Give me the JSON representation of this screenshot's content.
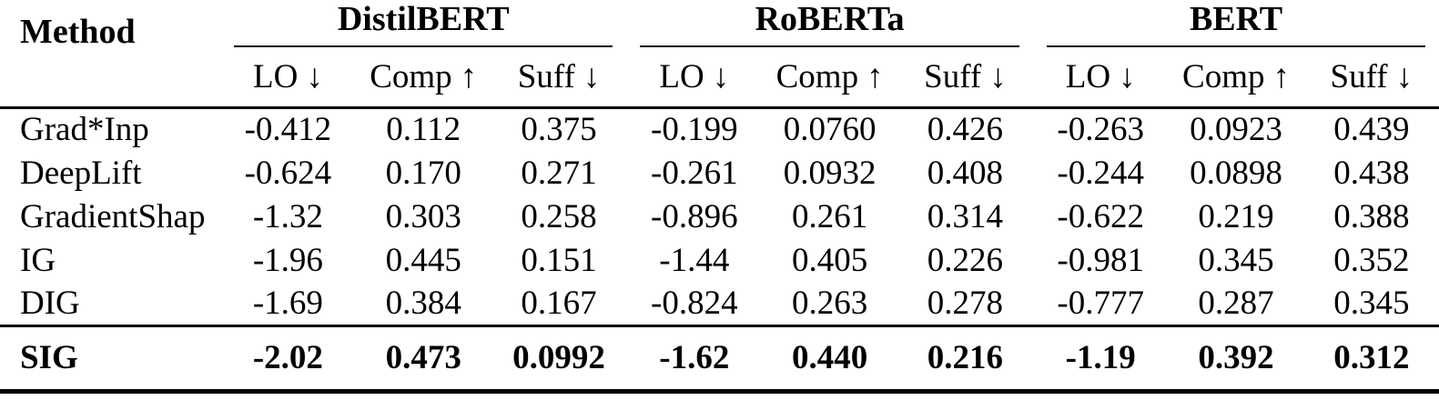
{
  "colors": {
    "text": "#000000",
    "background": "#ffffff",
    "rule": "#000000"
  },
  "table": {
    "method_header": "Method",
    "groups": [
      {
        "label": "DistilBERT"
      },
      {
        "label": "RoBERTa"
      },
      {
        "label": "BERT"
      }
    ],
    "metric_headers": [
      {
        "label": "LO",
        "arrow": "↓"
      },
      {
        "label": "Comp",
        "arrow": "↑"
      },
      {
        "label": "Suff",
        "arrow": "↓"
      }
    ],
    "rows": [
      {
        "method": "Grad*Inp",
        "values": [
          "-0.412",
          "0.112",
          "0.375",
          "-0.199",
          "0.0760",
          "0.426",
          "-0.263",
          "0.0923",
          "0.439"
        ]
      },
      {
        "method": "DeepLift",
        "values": [
          "-0.624",
          "0.170",
          "0.271",
          "-0.261",
          "0.0932",
          "0.408",
          "-0.244",
          "0.0898",
          "0.438"
        ]
      },
      {
        "method": "GradientShap",
        "values": [
          "-1.32",
          "0.303",
          "0.258",
          "-0.896",
          "0.261",
          "0.314",
          "-0.622",
          "0.219",
          "0.388"
        ]
      },
      {
        "method": "IG",
        "values": [
          "-1.96",
          "0.445",
          "0.151",
          "-1.44",
          "0.405",
          "0.226",
          "-0.981",
          "0.345",
          "0.352"
        ]
      },
      {
        "method": "DIG",
        "values": [
          "-1.69",
          "0.384",
          "0.167",
          "-0.824",
          "0.263",
          "0.278",
          "-0.777",
          "0.287",
          "0.345"
        ]
      }
    ],
    "highlight_row": {
      "method": "SIG",
      "values": [
        "-2.02",
        "0.473",
        "0.0992",
        "-1.62",
        "0.440",
        "0.216",
        "-1.19",
        "0.392",
        "0.312"
      ]
    }
  }
}
